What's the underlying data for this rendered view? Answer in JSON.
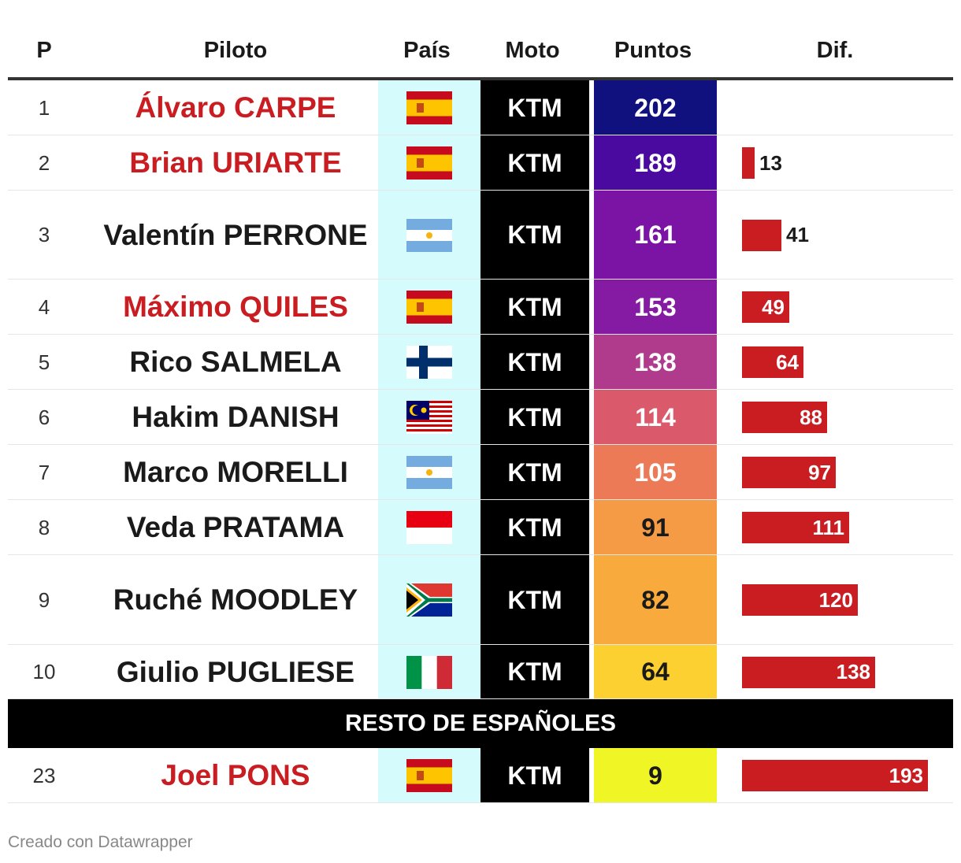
{
  "headers": {
    "pos": "P",
    "pilot": "Piloto",
    "country": "País",
    "moto": "Moto",
    "points": "Puntos",
    "dif": "Dif."
  },
  "colors": {
    "spain_name": "#c91d22",
    "country_col": "#d6fbfc",
    "moto_col": "#000000",
    "dif_bar": "#c91d22"
  },
  "chart_data": {
    "type": "table",
    "rows": [
      {
        "pos": "1",
        "pilot": "Álvaro CARPE",
        "spanish": true,
        "country": "spain-flag-icon",
        "moto": "KTM",
        "points": 202,
        "dif": null,
        "points_color": "#10117e"
      },
      {
        "pos": "2",
        "pilot": "Brian URIARTE",
        "spanish": true,
        "country": "spain-flag-icon",
        "moto": "KTM",
        "points": 189,
        "dif": 13,
        "points_color": "#4a0aa0"
      },
      {
        "pos": "3",
        "pilot": "Valentín PERRONE",
        "spanish": false,
        "country": "argentina-flag-icon",
        "moto": "KTM",
        "points": 161,
        "dif": 41,
        "points_color": "#7b14a4"
      },
      {
        "pos": "4",
        "pilot": "Máximo QUILES",
        "spanish": true,
        "country": "spain-flag-icon",
        "moto": "KTM",
        "points": 153,
        "dif": 49,
        "points_color": "#851ba2"
      },
      {
        "pos": "5",
        "pilot": "Rico SALMELA",
        "spanish": false,
        "country": "finland-flag-icon",
        "moto": "KTM",
        "points": 138,
        "dif": 64,
        "points_color": "#b03a8c"
      },
      {
        "pos": "6",
        "pilot": "Hakim DANISH",
        "spanish": false,
        "country": "malaysia-flag-icon",
        "moto": "KTM",
        "points": 114,
        "dif": 88,
        "points_color": "#da5a6c"
      },
      {
        "pos": "7",
        "pilot": "Marco MORELLI",
        "spanish": false,
        "country": "argentina-flag-icon",
        "moto": "KTM",
        "points": 105,
        "dif": 97,
        "points_color": "#ec7a57"
      },
      {
        "pos": "8",
        "pilot": "Veda PRATAMA",
        "spanish": false,
        "country": "indonesia-flag-icon",
        "moto": "KTM",
        "points": 91,
        "dif": 111,
        "points_color": "#f59a45"
      },
      {
        "pos": "9",
        "pilot": "Ruché MOODLEY",
        "spanish": false,
        "country": "south-africa-flag-icon",
        "moto": "KTM",
        "points": 82,
        "dif": 120,
        "points_color": "#f8aa3c"
      },
      {
        "pos": "10",
        "pilot": "Giulio PUGLIESE",
        "spanish": false,
        "country": "italy-flag-icon",
        "moto": "KTM",
        "points": 64,
        "dif": 138,
        "points_color": "#fcd030"
      }
    ],
    "section_label": "RESTO DE ESPAÑOLES",
    "extra_rows": [
      {
        "pos": "23",
        "pilot": "Joel PONS",
        "spanish": true,
        "country": "spain-flag-icon",
        "moto": "KTM",
        "points": 9,
        "dif": 193,
        "points_color": "#f0f526"
      }
    ],
    "dif_max": 193
  },
  "footer": "Creado con Datawrapper"
}
